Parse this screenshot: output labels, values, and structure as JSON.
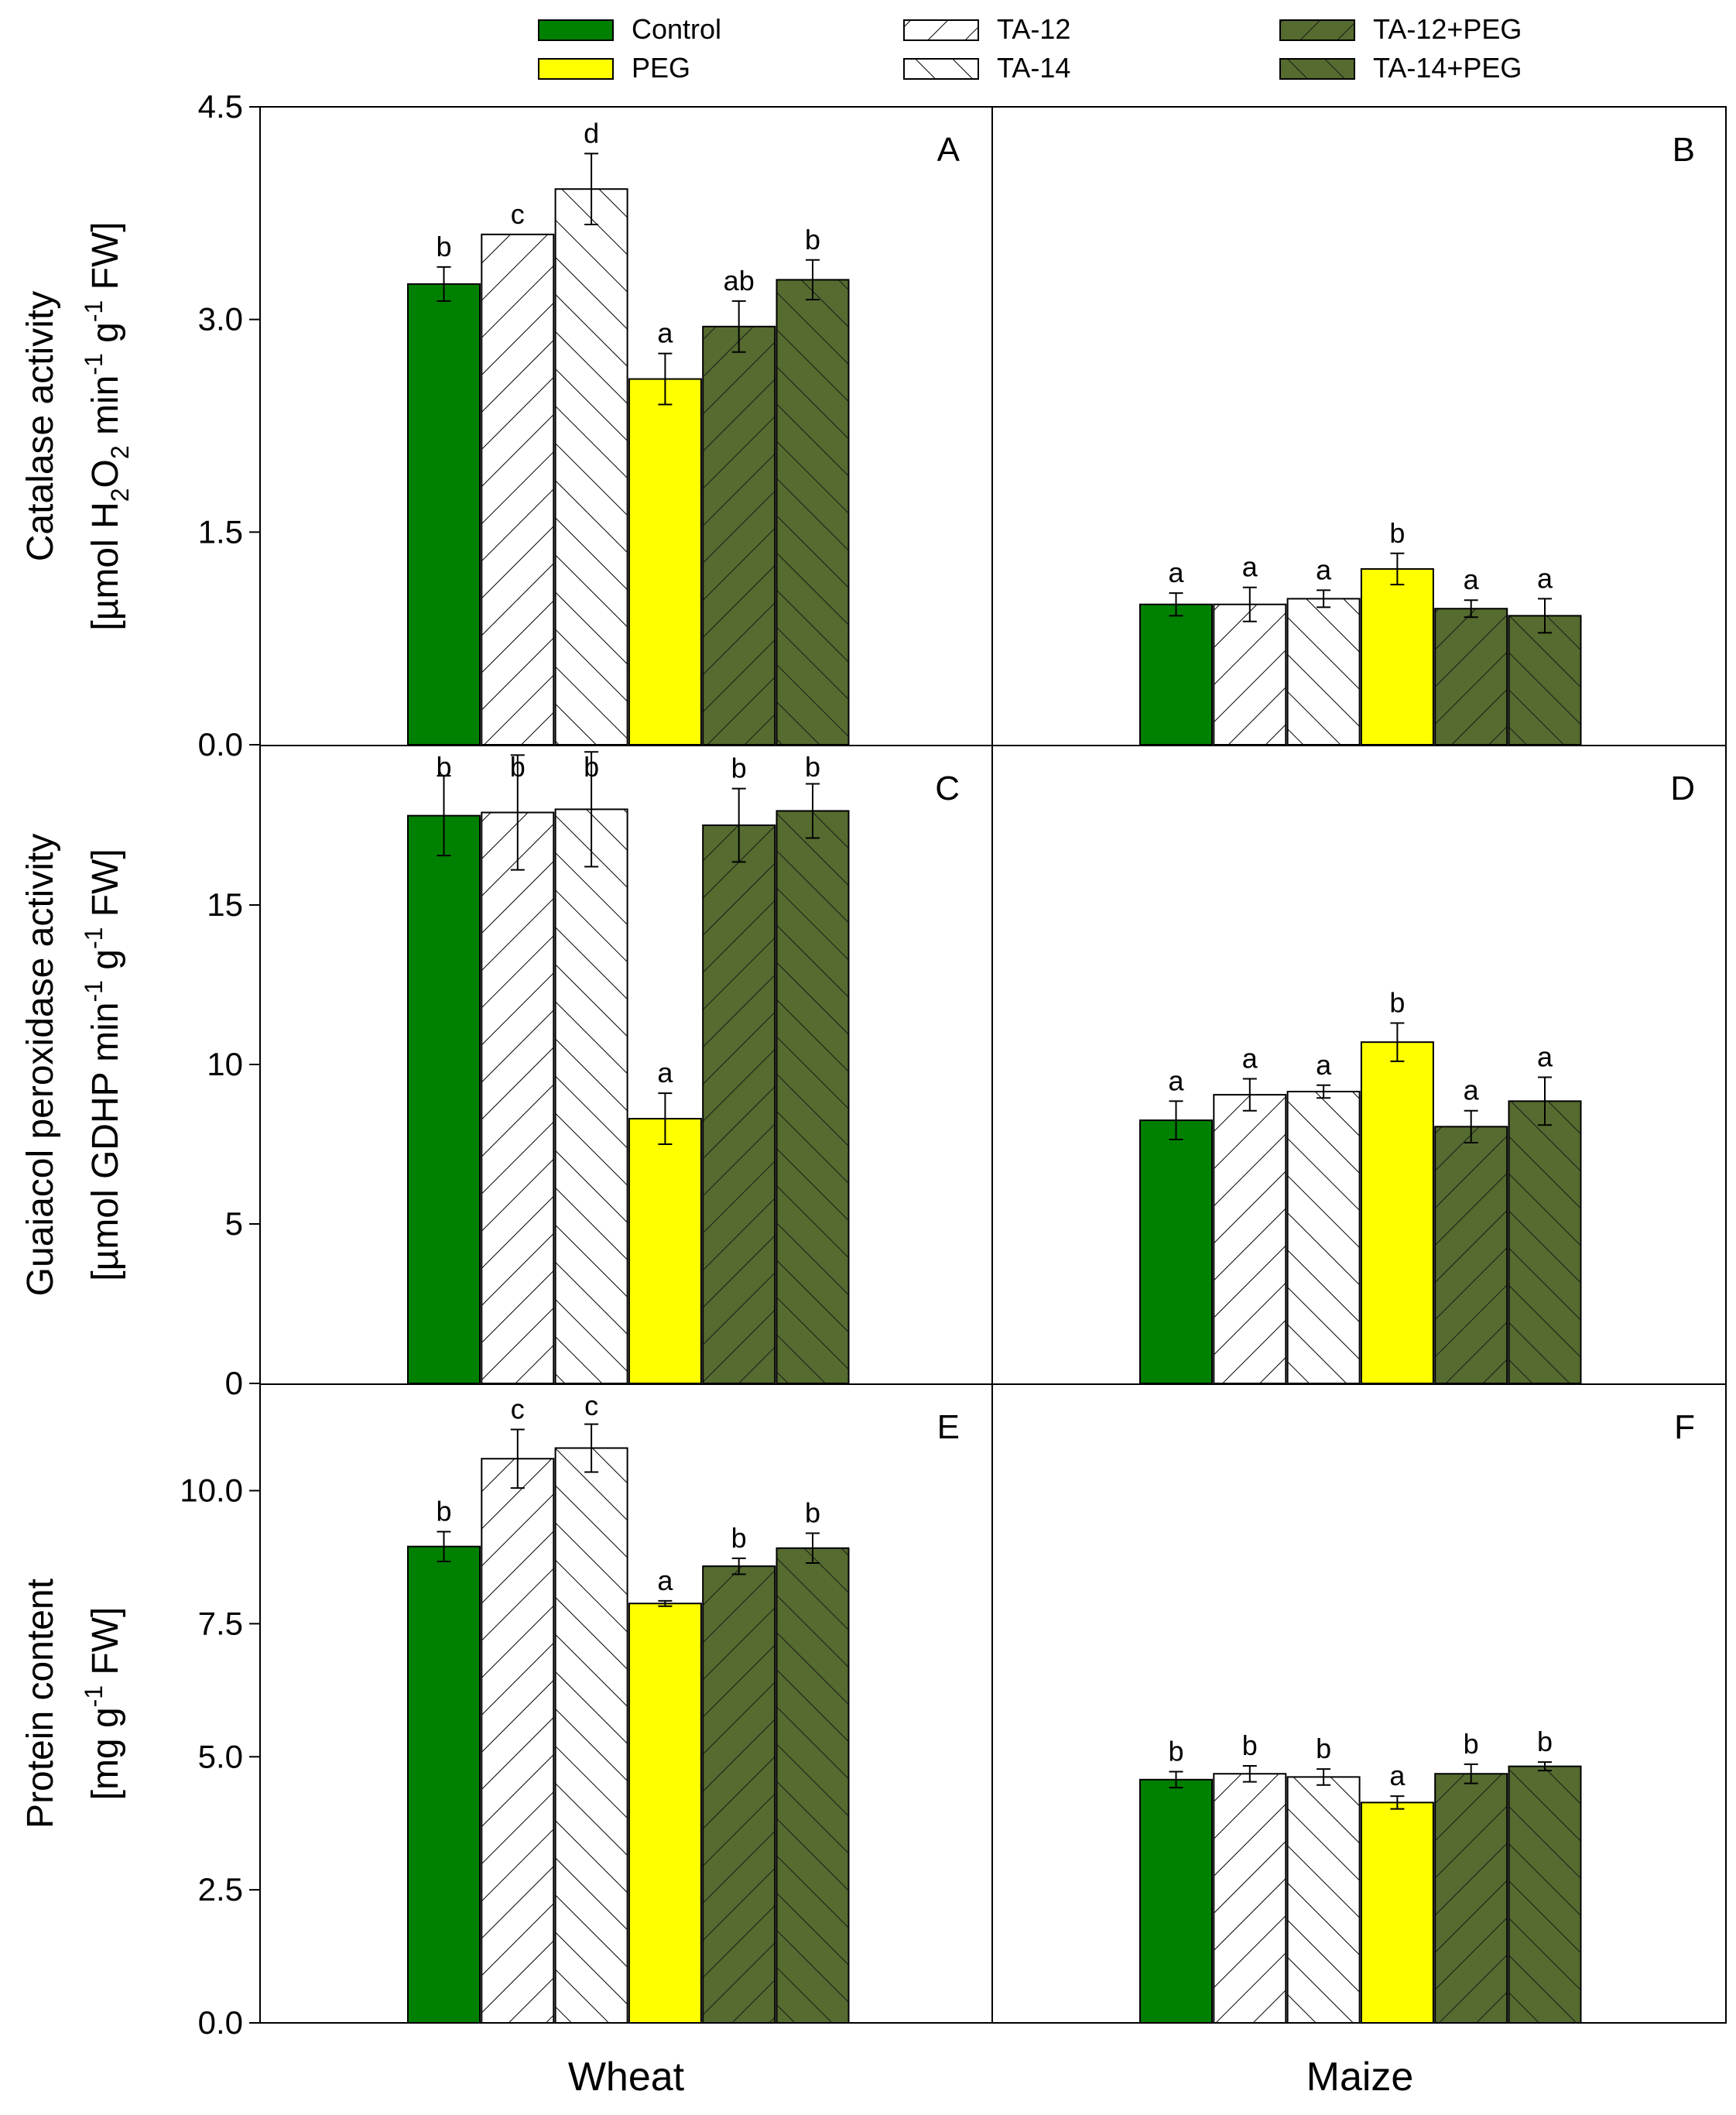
{
  "colors": {
    "control": "#008000",
    "peg": "#ffff00",
    "ta_fill": "#ffffff",
    "peg_dark": "#556b2f",
    "hatch_light": "#000000",
    "hatch_dark": "#1a1a1a",
    "axis": "#000000"
  },
  "legend": [
    {
      "label": "Control",
      "style": "control"
    },
    {
      "label": "PEG",
      "style": "peg"
    },
    {
      "label": "TA-12",
      "style": "ta12"
    },
    {
      "label": "TA-14",
      "style": "ta14"
    },
    {
      "label": "TA-12+PEG",
      "style": "ta12peg"
    },
    {
      "label": "TA-14+PEG",
      "style": "ta14peg"
    }
  ],
  "chart_data": {
    "type": "bar",
    "bar_order": [
      "Control",
      "TA-12",
      "TA-14",
      "PEG",
      "TA-12+PEG",
      "TA-14+PEG"
    ],
    "bar_styles": [
      "control",
      "ta12",
      "ta14",
      "peg",
      "ta12peg",
      "ta14peg"
    ],
    "x_categories": [
      "Wheat",
      "Maize"
    ],
    "rows": [
      {
        "ylabel_line1": "Catalase activity",
        "ylabel_line2_parts": [
          {
            "t": "[µmol H",
            "s": ""
          },
          {
            "t": "2",
            "s": "sub"
          },
          {
            "t": "O",
            "s": ""
          },
          {
            "t": "2",
            "s": "sub"
          },
          {
            "t": " min",
            "s": ""
          },
          {
            "t": "-1",
            "s": "sup"
          },
          {
            "t": " g",
            "s": ""
          },
          {
            "t": "-1",
            "s": "sup"
          },
          {
            "t": " FW]",
            "s": ""
          }
        ],
        "ylim": [
          0,
          4.5
        ],
        "ticks": [
          "0.0",
          "1.5",
          "3.0",
          "4.5"
        ],
        "tick_values": [
          0,
          1.5,
          3.0,
          4.5
        ],
        "panels": [
          {
            "letter": "A",
            "crop": "Wheat",
            "values": [
              3.25,
              3.6,
              3.92,
              2.58,
              2.95,
              3.28
            ],
            "errors": [
              0.12,
              0.0,
              0.25,
              0.18,
              0.18,
              0.14
            ],
            "labels": [
              "b",
              "c",
              "d",
              "a",
              "ab",
              "b"
            ]
          },
          {
            "letter": "B",
            "crop": "Maize",
            "values": [
              0.99,
              0.99,
              1.03,
              1.24,
              0.96,
              0.91
            ],
            "errors": [
              0.08,
              0.12,
              0.06,
              0.11,
              0.06,
              0.12
            ],
            "labels": [
              "a",
              "a",
              "a",
              "b",
              "a",
              "a"
            ]
          }
        ]
      },
      {
        "ylabel_line1": "Guaiacol peroxidase activity",
        "ylabel_line2_parts": [
          {
            "t": "[µmol GDHP min",
            "s": ""
          },
          {
            "t": "-1",
            "s": "sup"
          },
          {
            "t": " g",
            "s": ""
          },
          {
            "t": "-1",
            "s": "sup"
          },
          {
            "t": " FW]",
            "s": ""
          }
        ],
        "ylim": [
          0,
          20
        ],
        "ticks": [
          "0",
          "5",
          "10",
          "15"
        ],
        "tick_values": [
          0,
          5,
          10,
          15
        ],
        "panels": [
          {
            "letter": "C",
            "crop": "Wheat",
            "values": [
              17.8,
              17.9,
              18.0,
              8.3,
              17.5,
              17.95
            ],
            "errors": [
              1.25,
              1.8,
              1.8,
              0.8,
              1.15,
              0.85
            ],
            "labels": [
              "b",
              "b",
              "b",
              "a",
              "b",
              "b"
            ]
          },
          {
            "letter": "D",
            "crop": "Maize",
            "values": [
              8.25,
              9.05,
              9.15,
              10.7,
              8.05,
              8.85
            ],
            "errors": [
              0.6,
              0.5,
              0.2,
              0.6,
              0.5,
              0.75
            ],
            "labels": [
              "a",
              "a",
              "a",
              "b",
              "a",
              "a"
            ]
          }
        ]
      },
      {
        "ylabel_line1": "Protein content",
        "ylabel_line2_parts": [
          {
            "t": "[mg g",
            "s": ""
          },
          {
            "t": "-1",
            "s": "sup"
          },
          {
            "t": " FW]",
            "s": ""
          }
        ],
        "ylim": [
          0,
          12
        ],
        "ticks": [
          "0.0",
          "2.5",
          "5.0",
          "7.5",
          "10.0"
        ],
        "tick_values": [
          0,
          2.5,
          5.0,
          7.5,
          10.0
        ],
        "panels": [
          {
            "letter": "E",
            "crop": "Wheat",
            "values": [
              8.95,
              10.6,
              10.8,
              7.88,
              8.58,
              8.92
            ],
            "errors": [
              0.28,
              0.55,
              0.45,
              0.05,
              0.15,
              0.28
            ],
            "labels": [
              "b",
              "c",
              "c",
              "a",
              "b",
              "b"
            ]
          },
          {
            "letter": "F",
            "crop": "Maize",
            "values": [
              4.57,
              4.68,
              4.62,
              4.14,
              4.68,
              4.82
            ],
            "errors": [
              0.15,
              0.15,
              0.15,
              0.12,
              0.18,
              0.08
            ],
            "labels": [
              "b",
              "b",
              "b",
              "a",
              "b",
              "b"
            ]
          }
        ]
      }
    ]
  }
}
